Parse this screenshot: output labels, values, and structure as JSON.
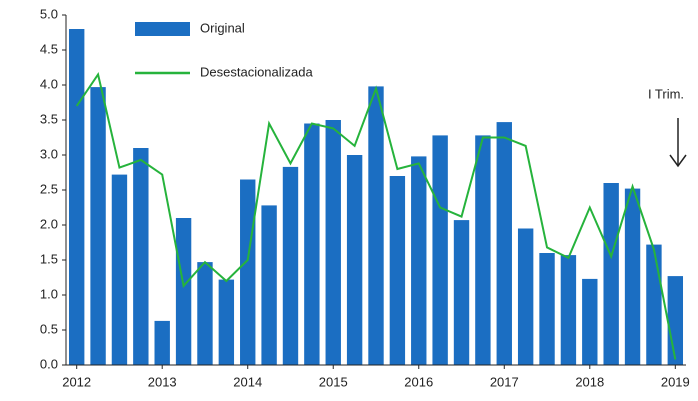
{
  "chart_data": {
    "type": "bar",
    "categories": [
      "2012",
      null,
      null,
      null,
      "2013",
      null,
      null,
      null,
      "2014",
      null,
      null,
      null,
      "2015",
      null,
      null,
      null,
      "2016",
      null,
      null,
      null,
      "2017",
      null,
      null,
      null,
      "2018",
      null,
      null,
      null,
      "2019"
    ],
    "series": [
      {
        "name": "Original",
        "type": "bar",
        "color": "#1b6ec2",
        "values": [
          4.8,
          3.97,
          2.72,
          3.1,
          0.63,
          2.1,
          1.47,
          1.22,
          2.65,
          2.28,
          2.83,
          3.45,
          3.5,
          3.0,
          3.98,
          2.7,
          2.98,
          3.28,
          2.07,
          3.28,
          3.47,
          1.95,
          1.6,
          1.57,
          1.23,
          2.6,
          2.52,
          1.72,
          1.27
        ]
      },
      {
        "name": "Desestacionalizada",
        "type": "line",
        "color": "#26b33c",
        "values": [
          3.7,
          4.15,
          2.82,
          2.93,
          2.72,
          1.13,
          1.47,
          1.2,
          1.5,
          3.45,
          2.88,
          3.45,
          3.38,
          3.13,
          3.95,
          2.8,
          2.88,
          2.25,
          2.12,
          3.25,
          3.25,
          3.13,
          1.68,
          1.53,
          2.25,
          1.55,
          2.55,
          1.65,
          0.08
        ]
      }
    ],
    "ylim": [
      0,
      5
    ],
    "yticks": [
      {
        "value": 0,
        "label": "0.0"
      },
      0.5,
      {
        "value": 1,
        "label": "1.0"
      },
      1.5,
      {
        "value": 2,
        "label": "2.0"
      },
      2.5,
      {
        "value": 3,
        "label": "3.0"
      },
      3.5,
      {
        "value": 4,
        "label": "4.0"
      },
      4.5,
      {
        "value": 5,
        "label": "5.0"
      }
    ],
    "annotation": "I Trim."
  }
}
